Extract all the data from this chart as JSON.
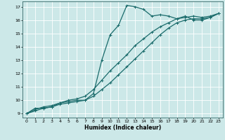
{
  "xlabel": "Humidex (Indice chaleur)",
  "bg_color": "#cce8e8",
  "grid_color": "#ffffff",
  "line_color": "#1a6b6b",
  "xlim": [
    -0.5,
    23.5
  ],
  "ylim": [
    8.7,
    17.4
  ],
  "xticks": [
    0,
    1,
    2,
    3,
    4,
    5,
    6,
    7,
    8,
    9,
    10,
    11,
    12,
    13,
    14,
    15,
    16,
    17,
    18,
    19,
    20,
    21,
    22,
    23
  ],
  "yticks": [
    9,
    10,
    11,
    12,
    13,
    14,
    15,
    16,
    17
  ],
  "line1_x": [
    0,
    1,
    2,
    3,
    4,
    5,
    6,
    7,
    8,
    9,
    10,
    11,
    12,
    13,
    14,
    15,
    16,
    17,
    18,
    19,
    20,
    21,
    22,
    23
  ],
  "line1_y": [
    9.0,
    9.4,
    9.4,
    9.5,
    9.8,
    9.9,
    10.0,
    10.0,
    10.5,
    13.0,
    14.9,
    15.6,
    17.1,
    17.0,
    16.8,
    16.3,
    16.4,
    16.3,
    16.1,
    16.3,
    16.0,
    16.0,
    16.2,
    16.5
  ],
  "line2_x": [
    0,
    1,
    2,
    3,
    4,
    5,
    6,
    7,
    8,
    9,
    10,
    11,
    12,
    13,
    14,
    15,
    16,
    17,
    18,
    19,
    20,
    21,
    22,
    23
  ],
  "line2_y": [
    9.0,
    9.3,
    9.5,
    9.6,
    9.8,
    10.0,
    10.1,
    10.3,
    10.8,
    11.5,
    12.2,
    12.8,
    13.4,
    14.1,
    14.6,
    15.1,
    15.5,
    15.8,
    16.1,
    16.2,
    16.3,
    16.2,
    16.3,
    16.5
  ],
  "line3_x": [
    0,
    1,
    2,
    3,
    4,
    5,
    6,
    7,
    8,
    9,
    10,
    11,
    12,
    13,
    14,
    15,
    16,
    17,
    18,
    19,
    20,
    21,
    22,
    23
  ],
  "line3_y": [
    9.0,
    9.2,
    9.4,
    9.5,
    9.7,
    9.8,
    9.9,
    10.0,
    10.3,
    10.8,
    11.3,
    11.9,
    12.5,
    13.1,
    13.7,
    14.3,
    14.9,
    15.4,
    15.8,
    16.0,
    16.1,
    16.1,
    16.2,
    16.5
  ]
}
